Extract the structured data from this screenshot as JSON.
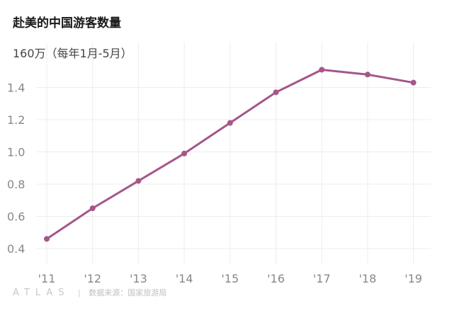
{
  "chart_data": {
    "type": "line",
    "title": "赴美的中国游客数量",
    "unit_label": "160万（每年1月-5月）",
    "categories": [
      "'11",
      "'12",
      "'13",
      "'14",
      "'15",
      "'16",
      "'17",
      "'18",
      "'19"
    ],
    "series": [
      {
        "values": [
          0.46,
          0.65,
          0.82,
          0.99,
          1.18,
          1.37,
          1.51,
          1.48,
          1.43
        ]
      }
    ],
    "y_ticks": [
      "0.4",
      "0.6",
      "0.8",
      "1.0",
      "1.2",
      "1.4"
    ],
    "y_tick_values": [
      0.4,
      0.6,
      0.8,
      1.0,
      1.2,
      1.4
    ],
    "ylim": [
      0.35,
      1.6
    ],
    "grid": true,
    "line_color": "#a5568a"
  },
  "footer": {
    "brand": "ATLAS",
    "source": "数据来源：国家旅游局"
  }
}
